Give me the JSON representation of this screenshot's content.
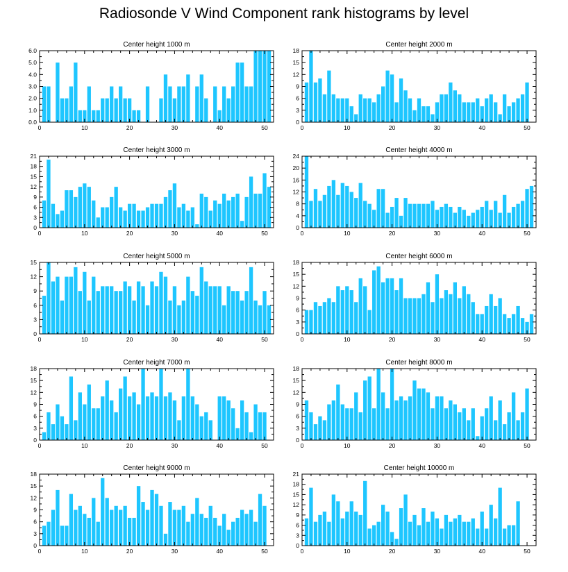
{
  "figure": {
    "title": "Radiosonde V Wind Component rank histograms by level"
  },
  "colors": {
    "bar": "#1ec6ff",
    "axis": "#000000"
  },
  "chart_data": [
    {
      "type": "bar",
      "title": "Center height 1000 m",
      "x": [
        1,
        2,
        3,
        4,
        5,
        6,
        7,
        8,
        9,
        10,
        11,
        12,
        13,
        14,
        15,
        16,
        17,
        18,
        19,
        20,
        21,
        22,
        23,
        24,
        25,
        26,
        27,
        28,
        29,
        30,
        31,
        32,
        33,
        34,
        35,
        36,
        37,
        38,
        39,
        40,
        41,
        42,
        43,
        44,
        45,
        46,
        47,
        48,
        49,
        50,
        51
      ],
      "values": [
        3,
        3,
        0,
        5,
        2,
        2,
        3,
        5,
        1,
        1,
        3,
        1,
        1,
        2,
        2,
        3,
        2,
        3,
        2,
        2,
        1,
        1,
        0,
        3,
        0,
        0,
        2,
        4,
        3,
        2,
        3,
        3,
        4,
        0,
        3,
        4,
        2,
        0,
        3,
        1,
        3,
        2,
        3,
        5,
        5,
        3,
        3,
        6,
        6,
        6,
        6
      ],
      "xlim": [
        0,
        52
      ],
      "ylim": [
        0,
        6
      ],
      "xticks": [
        0,
        10,
        20,
        30,
        40,
        50
      ],
      "yticks": [
        0,
        1,
        2,
        3,
        4,
        5,
        6
      ],
      "ytick_labels": [
        "0.0",
        "1.0",
        "2.0",
        "3.0",
        "4.0",
        "5.0",
        "6.0"
      ]
    },
    {
      "type": "bar",
      "title": "Center height 2000 m",
      "x": [
        1,
        2,
        3,
        4,
        5,
        6,
        7,
        8,
        9,
        10,
        11,
        12,
        13,
        14,
        15,
        16,
        17,
        18,
        19,
        20,
        21,
        22,
        23,
        24,
        25,
        26,
        27,
        28,
        29,
        30,
        31,
        32,
        33,
        34,
        35,
        36,
        37,
        38,
        39,
        40,
        41,
        42,
        43,
        44,
        45,
        46,
        47,
        48,
        49,
        50,
        51
      ],
      "values": [
        10,
        18,
        10,
        11,
        7,
        13,
        7,
        6,
        6,
        6,
        4,
        2,
        7,
        6,
        6,
        5,
        7,
        9,
        13,
        12,
        5,
        11,
        8,
        6,
        3,
        6,
        4,
        4,
        2,
        5,
        7,
        7,
        10,
        8,
        7,
        5,
        5,
        5,
        6,
        4,
        6,
        7,
        5,
        2,
        7,
        4,
        5,
        6,
        7,
        10,
        0
      ],
      "xlim": [
        0,
        52
      ],
      "ylim": [
        0,
        18
      ],
      "xticks": [
        0,
        10,
        20,
        30,
        40,
        50
      ],
      "yticks": [
        0,
        3,
        6,
        9,
        12,
        15,
        18
      ],
      "ytick_labels": [
        "0",
        "3",
        "6",
        "9",
        "12",
        "15",
        "18"
      ]
    },
    {
      "type": "bar",
      "title": "Center height 3000 m",
      "x": [
        1,
        2,
        3,
        4,
        5,
        6,
        7,
        8,
        9,
        10,
        11,
        12,
        13,
        14,
        15,
        16,
        17,
        18,
        19,
        20,
        21,
        22,
        23,
        24,
        25,
        26,
        27,
        28,
        29,
        30,
        31,
        32,
        33,
        34,
        35,
        36,
        37,
        38,
        39,
        40,
        41,
        42,
        43,
        44,
        45,
        46,
        47,
        48,
        49,
        50,
        51
      ],
      "values": [
        8,
        20,
        7,
        4,
        5,
        11,
        11,
        9,
        12,
        13,
        12,
        8,
        3,
        6,
        6,
        9,
        12,
        6,
        5,
        7,
        7,
        5,
        5,
        6,
        7,
        7,
        7,
        9,
        11,
        13,
        6,
        7,
        5,
        6,
        1,
        10,
        9,
        5,
        8,
        7,
        10,
        8,
        9,
        10,
        2,
        9,
        15,
        10,
        10,
        16,
        12
      ],
      "xlim": [
        0,
        52
      ],
      "ylim": [
        0,
        21
      ],
      "xticks": [
        0,
        10,
        20,
        30,
        40,
        50
      ],
      "yticks": [
        0,
        3,
        6,
        9,
        12,
        15,
        18,
        21
      ],
      "ytick_labels": [
        "0",
        "3",
        "6",
        "9",
        "12",
        "15",
        "18",
        "21"
      ]
    },
    {
      "type": "bar",
      "title": "Center height 4000 m",
      "x": [
        1,
        2,
        3,
        4,
        5,
        6,
        7,
        8,
        9,
        10,
        11,
        12,
        13,
        14,
        15,
        16,
        17,
        18,
        19,
        20,
        21,
        22,
        23,
        24,
        25,
        26,
        27,
        28,
        29,
        30,
        31,
        32,
        33,
        34,
        35,
        36,
        37,
        38,
        39,
        40,
        41,
        42,
        43,
        44,
        45,
        46,
        47,
        48,
        49,
        50,
        51
      ],
      "values": [
        24,
        9,
        13,
        9,
        11,
        14,
        16,
        11,
        15,
        14,
        12,
        10,
        15,
        9,
        8,
        6,
        13,
        13,
        5,
        7,
        10,
        4,
        10,
        8,
        8,
        8,
        8,
        8,
        9,
        6,
        7,
        8,
        7,
        5,
        7,
        6,
        4,
        5,
        6,
        7,
        9,
        6,
        9,
        5,
        11,
        5,
        7,
        8,
        9,
        13,
        14
      ],
      "xlim": [
        0,
        52
      ],
      "ylim": [
        0,
        24
      ],
      "xticks": [
        0,
        10,
        20,
        30,
        40,
        50
      ],
      "yticks": [
        0,
        4,
        8,
        12,
        16,
        20,
        24
      ],
      "ytick_labels": [
        "0",
        "4",
        "8",
        "12",
        "16",
        "20",
        "24"
      ]
    },
    {
      "type": "bar",
      "title": "Center height 5000 m",
      "x": [
        1,
        2,
        3,
        4,
        5,
        6,
        7,
        8,
        9,
        10,
        11,
        12,
        13,
        14,
        15,
        16,
        17,
        18,
        19,
        20,
        21,
        22,
        23,
        24,
        25,
        26,
        27,
        28,
        29,
        30,
        31,
        32,
        33,
        34,
        35,
        36,
        37,
        38,
        39,
        40,
        41,
        42,
        43,
        44,
        45,
        46,
        47,
        48,
        49,
        50,
        51
      ],
      "values": [
        8,
        15,
        11,
        12,
        7,
        12,
        12,
        14,
        9,
        13,
        7,
        12,
        9,
        10,
        10,
        10,
        9,
        9,
        11,
        10,
        7,
        11,
        10,
        6,
        11,
        10,
        13,
        12,
        7,
        10,
        6,
        7,
        12,
        9,
        8,
        14,
        11,
        10,
        10,
        10,
        6,
        10,
        9,
        9,
        7,
        9,
        14,
        7,
        6,
        9,
        6
      ],
      "xlim": [
        0,
        52
      ],
      "ylim": [
        0,
        15
      ],
      "xticks": [
        0,
        10,
        20,
        30,
        40,
        50
      ],
      "yticks": [
        0,
        3,
        6,
        9,
        12,
        15
      ],
      "ytick_labels": [
        "0",
        "3",
        "6",
        "9",
        "12",
        "15"
      ]
    },
    {
      "type": "bar",
      "title": "Center height 6000 m",
      "x": [
        1,
        2,
        3,
        4,
        5,
        6,
        7,
        8,
        9,
        10,
        11,
        12,
        13,
        14,
        15,
        16,
        17,
        18,
        19,
        20,
        21,
        22,
        23,
        24,
        25,
        26,
        27,
        28,
        29,
        30,
        31,
        32,
        33,
        34,
        35,
        36,
        37,
        38,
        39,
        40,
        41,
        42,
        43,
        44,
        45,
        46,
        47,
        48,
        49,
        50,
        51
      ],
      "values": [
        6,
        6,
        8,
        7,
        8,
        9,
        8,
        12,
        11,
        12,
        11,
        8,
        14,
        12,
        6,
        16,
        17,
        13,
        14,
        14,
        11,
        14,
        9,
        9,
        9,
        9,
        10,
        13,
        8,
        15,
        9,
        11,
        10,
        13,
        9,
        12,
        10,
        8,
        5,
        5,
        7,
        10,
        7,
        9,
        5,
        4,
        5,
        7,
        4,
        3,
        5
      ],
      "xlim": [
        0,
        52
      ],
      "ylim": [
        0,
        18
      ],
      "xticks": [
        0,
        10,
        20,
        30,
        40,
        50
      ],
      "yticks": [
        0,
        3,
        6,
        9,
        12,
        15,
        18
      ],
      "ytick_labels": [
        "0",
        "3",
        "6",
        "9",
        "12",
        "15",
        "18"
      ]
    },
    {
      "type": "bar",
      "title": "Center height 7000 m",
      "x": [
        1,
        2,
        3,
        4,
        5,
        6,
        7,
        8,
        9,
        10,
        11,
        12,
        13,
        14,
        15,
        16,
        17,
        18,
        19,
        20,
        21,
        22,
        23,
        24,
        25,
        26,
        27,
        28,
        29,
        30,
        31,
        32,
        33,
        34,
        35,
        36,
        37,
        38,
        39,
        40,
        41,
        42,
        43,
        44,
        45,
        46,
        47,
        48,
        49,
        50,
        51
      ],
      "values": [
        2,
        7,
        4,
        9,
        6,
        4,
        16,
        5,
        12,
        9,
        14,
        8,
        8,
        11,
        15,
        10,
        7,
        13,
        16,
        11,
        12,
        9,
        18,
        11,
        12,
        11,
        18,
        11,
        12,
        10,
        5,
        11,
        18,
        11,
        9,
        6,
        7,
        5,
        0,
        11,
        11,
        10,
        8,
        3,
        10,
        7,
        2,
        9,
        7,
        7,
        0
      ],
      "xlim": [
        0,
        52
      ],
      "ylim": [
        0,
        18
      ],
      "xticks": [
        0,
        10,
        20,
        30,
        40,
        50
      ],
      "yticks": [
        0,
        3,
        6,
        9,
        12,
        15,
        18
      ],
      "ytick_labels": [
        "0",
        "3",
        "6",
        "9",
        "12",
        "15",
        "18"
      ]
    },
    {
      "type": "bar",
      "title": "Center height 8000 m",
      "x": [
        1,
        2,
        3,
        4,
        5,
        6,
        7,
        8,
        9,
        10,
        11,
        12,
        13,
        14,
        15,
        16,
        17,
        18,
        19,
        20,
        21,
        22,
        23,
        24,
        25,
        26,
        27,
        28,
        29,
        30,
        31,
        32,
        33,
        34,
        35,
        36,
        37,
        38,
        39,
        40,
        41,
        42,
        43,
        44,
        45,
        46,
        47,
        48,
        49,
        50,
        51
      ],
      "values": [
        10,
        7,
        4,
        6,
        5,
        9,
        10,
        14,
        9,
        8,
        8,
        12,
        7,
        15,
        16,
        8,
        18,
        12,
        8,
        18,
        10,
        11,
        10,
        11,
        15,
        13,
        13,
        12,
        8,
        11,
        11,
        8,
        10,
        9,
        7,
        8,
        5,
        8,
        1,
        6,
        8,
        11,
        5,
        10,
        4,
        7,
        12,
        5,
        7,
        13,
        0
      ],
      "xlim": [
        0,
        52
      ],
      "ylim": [
        0,
        18
      ],
      "xticks": [
        0,
        10,
        20,
        30,
        40,
        50
      ],
      "yticks": [
        0,
        3,
        6,
        9,
        12,
        15,
        18
      ],
      "ytick_labels": [
        "0",
        "3",
        "6",
        "9",
        "12",
        "15",
        "18"
      ]
    },
    {
      "type": "bar",
      "title": "Center height 9000 m",
      "x": [
        1,
        2,
        3,
        4,
        5,
        6,
        7,
        8,
        9,
        10,
        11,
        12,
        13,
        14,
        15,
        16,
        17,
        18,
        19,
        20,
        21,
        22,
        23,
        24,
        25,
        26,
        27,
        28,
        29,
        30,
        31,
        32,
        33,
        34,
        35,
        36,
        37,
        38,
        39,
        40,
        41,
        42,
        43,
        44,
        45,
        46,
        47,
        48,
        49,
        50,
        51
      ],
      "values": [
        5,
        6,
        9,
        14,
        5,
        5,
        13,
        9,
        10,
        8,
        7,
        12,
        6,
        17,
        12,
        9,
        10,
        9,
        10,
        7,
        7,
        15,
        11,
        9,
        14,
        13,
        10,
        3,
        11,
        9,
        9,
        10,
        6,
        8,
        12,
        8,
        7,
        10,
        7,
        5,
        8,
        4,
        6,
        7,
        9,
        8,
        9,
        6,
        13,
        10,
        0
      ],
      "xlim": [
        0,
        52
      ],
      "ylim": [
        0,
        18
      ],
      "xticks": [
        0,
        10,
        20,
        30,
        40,
        50
      ],
      "yticks": [
        0,
        3,
        6,
        9,
        12,
        15,
        18
      ],
      "ytick_labels": [
        "0",
        "3",
        "6",
        "9",
        "12",
        "15",
        "18"
      ]
    },
    {
      "type": "bar",
      "title": "Center height 10000 m",
      "x": [
        1,
        2,
        3,
        4,
        5,
        6,
        7,
        8,
        9,
        10,
        11,
        12,
        13,
        14,
        15,
        16,
        17,
        18,
        19,
        20,
        21,
        22,
        23,
        24,
        25,
        26,
        27,
        28,
        29,
        30,
        31,
        32,
        33,
        34,
        35,
        36,
        37,
        38,
        39,
        40,
        41,
        42,
        43,
        44,
        45,
        46,
        47,
        48,
        49,
        50,
        51
      ],
      "values": [
        8,
        17,
        7,
        9,
        10,
        7,
        15,
        13,
        8,
        10,
        13,
        10,
        9,
        19,
        5,
        6,
        7,
        12,
        10,
        4,
        2,
        11,
        15,
        7,
        9,
        6,
        11,
        7,
        10,
        8,
        5,
        9,
        7,
        8,
        9,
        7,
        7,
        8,
        5,
        10,
        5,
        12,
        8,
        17,
        5,
        6,
        6,
        13,
        0,
        0,
        0
      ],
      "xlim": [
        0,
        52
      ],
      "ylim": [
        0,
        21
      ],
      "xticks": [
        0,
        10,
        20,
        30,
        40,
        50
      ],
      "yticks": [
        0,
        3,
        6,
        9,
        12,
        15,
        18,
        21
      ],
      "ytick_labels": [
        "0",
        "3",
        "6",
        "9",
        "12",
        "15",
        "18",
        "21"
      ]
    }
  ]
}
